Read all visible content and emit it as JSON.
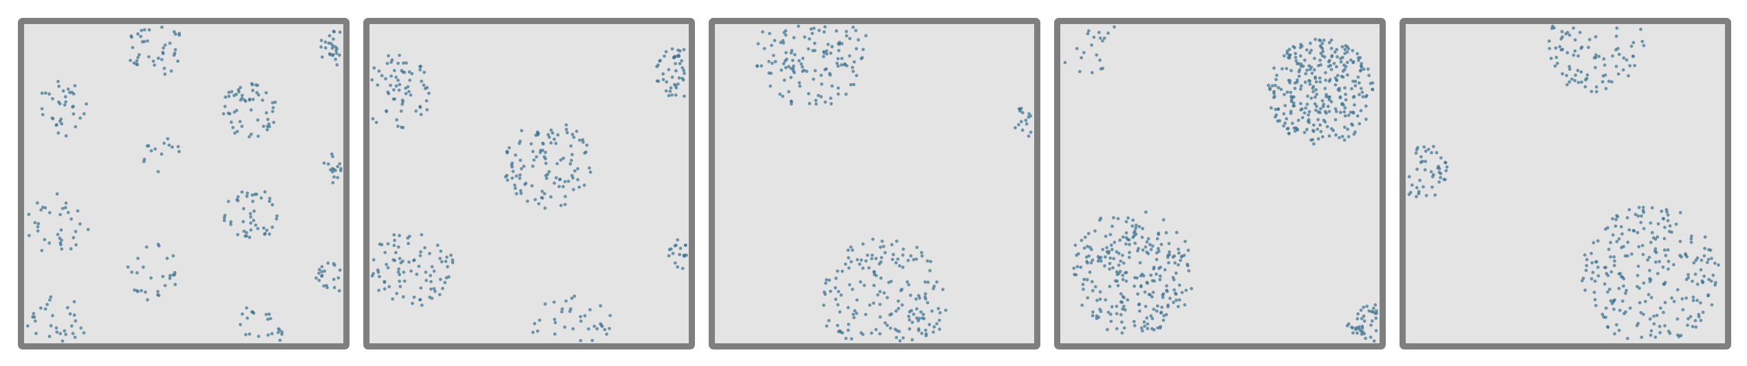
{
  "chart_data": [
    {
      "type": "scatter",
      "title": "",
      "xlabel": "",
      "ylabel": "",
      "xlim": [
        0,
        1
      ],
      "ylim": [
        0,
        1
      ],
      "grid": false,
      "legend": "none",
      "marker_color": "#3f7391",
      "clusters": [
        {
          "cx": 0.41,
          "cy": 0.93,
          "r": 0.09,
          "n": 40
        },
        {
          "cx": 0.71,
          "cy": 0.73,
          "r": 0.09,
          "n": 55
        },
        {
          "cx": 0.12,
          "cy": 0.74,
          "r": 0.09,
          "n": 35
        },
        {
          "cx": 0.43,
          "cy": 0.59,
          "r": 0.06,
          "n": 14
        },
        {
          "cx": 0.99,
          "cy": 0.93,
          "r": 0.06,
          "n": 25
        },
        {
          "cx": 0.99,
          "cy": 0.55,
          "r": 0.05,
          "n": 16
        },
        {
          "cx": 0.71,
          "cy": 0.4,
          "r": 0.09,
          "n": 45
        },
        {
          "cx": 0.1,
          "cy": 0.37,
          "r": 0.1,
          "n": 35
        },
        {
          "cx": 0.4,
          "cy": 0.22,
          "r": 0.09,
          "n": 28
        },
        {
          "cx": 0.97,
          "cy": 0.2,
          "r": 0.05,
          "n": 20
        },
        {
          "cx": 0.1,
          "cy": 0.05,
          "r": 0.1,
          "n": 30
        },
        {
          "cx": 0.73,
          "cy": 0.04,
          "r": 0.09,
          "n": 22
        }
      ]
    },
    {
      "type": "scatter",
      "title": "",
      "xlabel": "",
      "ylabel": "",
      "xlim": [
        0,
        1
      ],
      "ylim": [
        0,
        1
      ],
      "grid": false,
      "legend": "none",
      "marker_color": "#3f7391",
      "clusters": [
        {
          "cx": 0.07,
          "cy": 0.79,
          "r": 0.12,
          "n": 65
        },
        {
          "cx": 0.99,
          "cy": 0.85,
          "r": 0.09,
          "n": 45
        },
        {
          "cx": 0.56,
          "cy": 0.56,
          "r": 0.14,
          "n": 110
        },
        {
          "cx": 0.13,
          "cy": 0.23,
          "r": 0.13,
          "n": 85
        },
        {
          "cx": 0.64,
          "cy": 0.03,
          "r": 0.13,
          "n": 35
        },
        {
          "cx": 0.99,
          "cy": 0.28,
          "r": 0.05,
          "n": 18
        }
      ]
    },
    {
      "type": "scatter",
      "title": "",
      "xlabel": "",
      "ylabel": "",
      "xlim": [
        0,
        1
      ],
      "ylim": [
        0,
        1
      ],
      "grid": false,
      "legend": "none",
      "marker_color": "#3f7391",
      "clusters": [
        {
          "cx": 0.3,
          "cy": 0.92,
          "r": 0.18,
          "n": 130
        },
        {
          "cx": 0.99,
          "cy": 0.7,
          "r": 0.05,
          "n": 16
        },
        {
          "cx": 0.53,
          "cy": 0.13,
          "r": 0.2,
          "n": 170
        }
      ]
    },
    {
      "type": "scatter",
      "title": "",
      "xlabel": "",
      "ylabel": "",
      "xlim": [
        0,
        1
      ],
      "ylim": [
        0,
        1
      ],
      "grid": false,
      "legend": "none",
      "marker_color": "#3f7391",
      "clusters": [
        {
          "cx": 0.08,
          "cy": 0.95,
          "r": 0.1,
          "n": 20
        },
        {
          "cx": 0.82,
          "cy": 0.79,
          "r": 0.17,
          "n": 300
        },
        {
          "cx": 0.22,
          "cy": 0.22,
          "r": 0.2,
          "n": 260
        },
        {
          "cx": 0.97,
          "cy": 0.05,
          "r": 0.07,
          "n": 40
        }
      ]
    },
    {
      "type": "scatter",
      "title": "",
      "xlabel": "",
      "ylabel": "",
      "xlim": [
        0,
        1
      ],
      "ylim": [
        0,
        1
      ],
      "grid": false,
      "legend": "none",
      "marker_color": "#3f7391",
      "clusters": [
        {
          "cx": 0.59,
          "cy": 0.94,
          "r": 0.16,
          "n": 85
        },
        {
          "cx": 0.04,
          "cy": 0.54,
          "r": 0.09,
          "n": 45
        },
        {
          "cx": 0.77,
          "cy": 0.21,
          "r": 0.22,
          "n": 240
        }
      ]
    }
  ]
}
